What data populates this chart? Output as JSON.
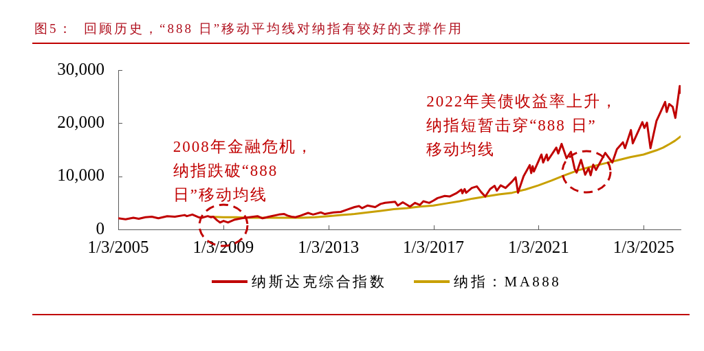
{
  "chart_data": {
    "type": "line",
    "title": "图5：  回顾历史，“888 日”移动平均线对纳指有较好的支撑作用",
    "xlim": [
      "2005-01-03",
      "2026-06-01"
    ],
    "xticks": [
      {
        "value": "2005-01-03",
        "label": "1/3/2005"
      },
      {
        "value": "2009-01-03",
        "label": "1/3/2009"
      },
      {
        "value": "2013-01-03",
        "label": "1/3/2013"
      },
      {
        "value": "2017-01-03",
        "label": "1/3/2017"
      },
      {
        "value": "2021-01-03",
        "label": "1/3/2021"
      },
      {
        "value": "2025-01-03",
        "label": "1/3/2025"
      }
    ],
    "ylim": [
      0,
      30000
    ],
    "yticks": [
      0,
      {
        "value": 10000,
        "label": "10,000"
      },
      {
        "value": 20000,
        "label": "20,000"
      },
      {
        "value": 30000,
        "label": "30,000"
      }
    ],
    "grid": false,
    "legend": "bottom",
    "marker": "none",
    "line_style": "solid",
    "series": [
      {
        "name": "纳斯达克综合指数",
        "color": "#c00000",
        "x": [
          "2005-01-03",
          "2005-04-15",
          "2005-08-01",
          "2005-10-15",
          "2006-01-15",
          "2006-04-15",
          "2006-07-15",
          "2006-11-15",
          "2007-03-01",
          "2007-07-15",
          "2007-08-15",
          "2007-10-31",
          "2008-01-22",
          "2008-03-10",
          "2008-06-01",
          "2008-07-15",
          "2008-08-15",
          "2008-10-10",
          "2008-11-20",
          "2009-01-06",
          "2009-03-09",
          "2009-06-01",
          "2009-09-15",
          "2009-12-31",
          "2010-04-23",
          "2010-07-01",
          "2010-11-01",
          "2011-02-15",
          "2011-04-29",
          "2011-06-15",
          "2011-08-08",
          "2011-10-03",
          "2011-12-15",
          "2012-03-27",
          "2012-06-04",
          "2012-09-19",
          "2012-11-15",
          "2013-03-15",
          "2013-06-24",
          "2013-09-15",
          "2013-12-31",
          "2014-03-05",
          "2014-04-15",
          "2014-07-03",
          "2014-10-15",
          "2014-12-29",
          "2015-03-02",
          "2015-07-20",
          "2015-08-25",
          "2015-11-03",
          "2016-02-11",
          "2016-04-20",
          "2016-06-27",
          "2016-08-15",
          "2016-11-04",
          "2016-12-30",
          "2017-03-01",
          "2017-06-08",
          "2017-08-15",
          "2017-11-15",
          "2018-01-26",
          "2018-02-08",
          "2018-03-12",
          "2018-04-02",
          "2018-06-20",
          "2018-08-29",
          "2018-10-29",
          "2018-12-24",
          "2019-03-01",
          "2019-05-03",
          "2019-06-03",
          "2019-07-26",
          "2019-10-02",
          "2019-12-31",
          "2020-02-19",
          "2020-03-23",
          "2020-06-08",
          "2020-09-02",
          "2020-09-23",
          "2020-10-12",
          "2020-10-30",
          "2021-02-12",
          "2021-03-08",
          "2021-04-26",
          "2021-05-12",
          "2021-09-07",
          "2021-10-04",
          "2021-11-19",
          "2022-01-27",
          "2022-03-29",
          "2022-05-20",
          "2022-06-16",
          "2022-08-16",
          "2022-10-13",
          "2022-11-30",
          "2022-12-28",
          "2023-02-02",
          "2023-03-13",
          "2023-07-19",
          "2023-10-26",
          "2023-12-28",
          "2024-03-21",
          "2024-04-19",
          "2024-07-10",
          "2024-08-05",
          "2024-12-16",
          "2025-01-13",
          "2025-02-18",
          "2025-04-08",
          "2025-06-30",
          "2025-08-13",
          "2025-10-29",
          "2025-11-20",
          "2025-12-24",
          "2026-02-10",
          "2026-03-20",
          "2026-05-20",
          "2026-06-01"
        ],
        "values": [
          2100,
          1900,
          2200,
          2000,
          2300,
          2400,
          2100,
          2500,
          2400,
          2700,
          2500,
          2800,
          2300,
          2200,
          2500,
          2300,
          2400,
          1700,
          1300,
          1600,
          1300,
          1800,
          2100,
          2300,
          2500,
          2100,
          2500,
          2800,
          2900,
          2600,
          2400,
          2300,
          2600,
          3100,
          2800,
          3200,
          2900,
          3200,
          3300,
          3700,
          4200,
          4400,
          4000,
          4500,
          4200,
          4800,
          5000,
          5200,
          4500,
          5100,
          4300,
          5000,
          4600,
          5300,
          5000,
          5400,
          5900,
          6300,
          6200,
          6800,
          7500,
          6800,
          7600,
          6900,
          7800,
          8100,
          7000,
          6200,
          7600,
          8200,
          7300,
          8300,
          7800,
          9000,
          9800,
          6900,
          10000,
          12100,
          10600,
          11900,
          10900,
          14100,
          12600,
          14100,
          13000,
          15400,
          14300,
          16100,
          13400,
          14600,
          11400,
          10700,
          13100,
          10300,
          11500,
          10200,
          12200,
          11200,
          14400,
          12600,
          15100,
          16400,
          15300,
          18700,
          16200,
          20200,
          19100,
          20100,
          15300,
          20400,
          21700,
          24000,
          22100,
          23600,
          23100,
          21000,
          27000,
          25700
        ]
      },
      {
        "name": "纳指：MA888",
        "color": "#c8a000",
        "x": [
          "2008-07-01",
          "2009-01-01",
          "2009-07-01",
          "2010-01-01",
          "2010-07-01",
          "2011-01-01",
          "2011-07-01",
          "2012-01-01",
          "2012-07-01",
          "2013-01-01",
          "2013-07-01",
          "2014-01-01",
          "2014-07-01",
          "2015-01-01",
          "2015-07-01",
          "2016-01-01",
          "2016-07-01",
          "2017-01-01",
          "2017-07-01",
          "2018-01-01",
          "2018-07-01",
          "2019-01-01",
          "2019-07-01",
          "2020-01-01",
          "2020-07-01",
          "2021-01-01",
          "2021-07-01",
          "2022-01-01",
          "2022-07-01",
          "2023-01-01",
          "2023-07-01",
          "2024-01-01",
          "2024-07-01",
          "2025-01-01",
          "2025-07-01",
          "2025-10-01",
          "2026-01-01",
          "2026-03-15",
          "2026-06-01"
        ],
        "values": [
          2400,
          2300,
          2300,
          2200,
          2200,
          2200,
          2200,
          2200,
          2300,
          2500,
          2700,
          2900,
          3200,
          3500,
          3800,
          4000,
          4300,
          4500,
          4900,
          5300,
          5800,
          6200,
          6600,
          6900,
          7500,
          8300,
          9200,
          10200,
          11100,
          11800,
          12400,
          13000,
          13600,
          14100,
          14900,
          15400,
          16100,
          16700,
          17500
        ]
      }
    ],
    "annotations": [
      {
        "text": "2008年金融危机，纳指跌破“888日”移动均线",
        "x": "2009-01",
        "y": 1400
      },
      {
        "text": "2022年美债收益率上升，纳指短暂击穿“888 日”移动均线",
        "x": "2022-11",
        "y": 10800
      }
    ]
  }
}
